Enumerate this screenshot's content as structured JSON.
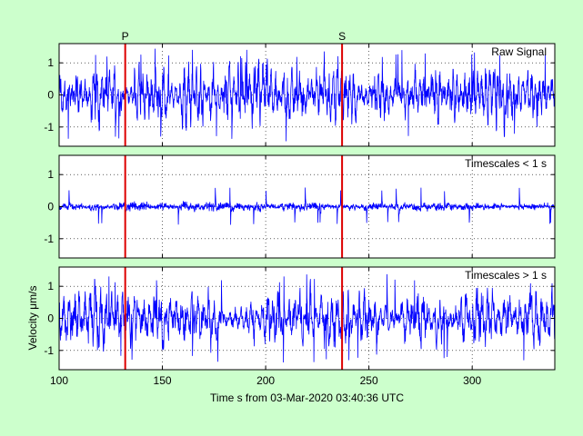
{
  "figure": {
    "background": "#ccffcc",
    "xlabel": "Time s from 03-Mar-2020 03:40:36 UTC",
    "ylabel": "Velocity μm/s",
    "trace_color": "#0000ff",
    "marker_color": "#dd0000"
  },
  "chart_data": [
    {
      "type": "line",
      "title": "Raw Signal",
      "xlim": [
        100,
        340
      ],
      "ylim": [
        -1.6,
        1.6
      ],
      "x_ticks": [
        100,
        150,
        200,
        250,
        300
      ],
      "y_ticks": [
        -1,
        0,
        1
      ],
      "grid": true,
      "phase_markers": [
        {
          "label": "P",
          "x": 132
        },
        {
          "label": "S",
          "x": 237
        }
      ],
      "series": [
        {
          "amplitude": 0.75,
          "peak": 1.45,
          "period_s": 2.0
        }
      ]
    },
    {
      "type": "line",
      "title": "Timescales < 1 s",
      "xlim": [
        100,
        340
      ],
      "ylim": [
        -1.6,
        1.6
      ],
      "x_ticks": [
        100,
        150,
        200,
        250,
        300
      ],
      "y_ticks": [
        -1,
        0,
        1
      ],
      "grid": true,
      "phase_markers": [
        {
          "x": 132
        },
        {
          "x": 237
        }
      ],
      "series": [
        {
          "amplitude": 0.13,
          "peak": 0.6,
          "period_s": 0.4
        }
      ]
    },
    {
      "type": "line",
      "title": "Timescales > 1 s",
      "xlim": [
        100,
        340
      ],
      "ylim": [
        -1.6,
        1.6
      ],
      "x_ticks": [
        100,
        150,
        200,
        250,
        300
      ],
      "y_ticks": [
        -1,
        0,
        1
      ],
      "grid": true,
      "phase_markers": [
        {
          "x": 132
        },
        {
          "x": 237
        }
      ],
      "series": [
        {
          "amplitude": 0.7,
          "peak": 1.4,
          "period_s": 2.6
        }
      ]
    }
  ]
}
